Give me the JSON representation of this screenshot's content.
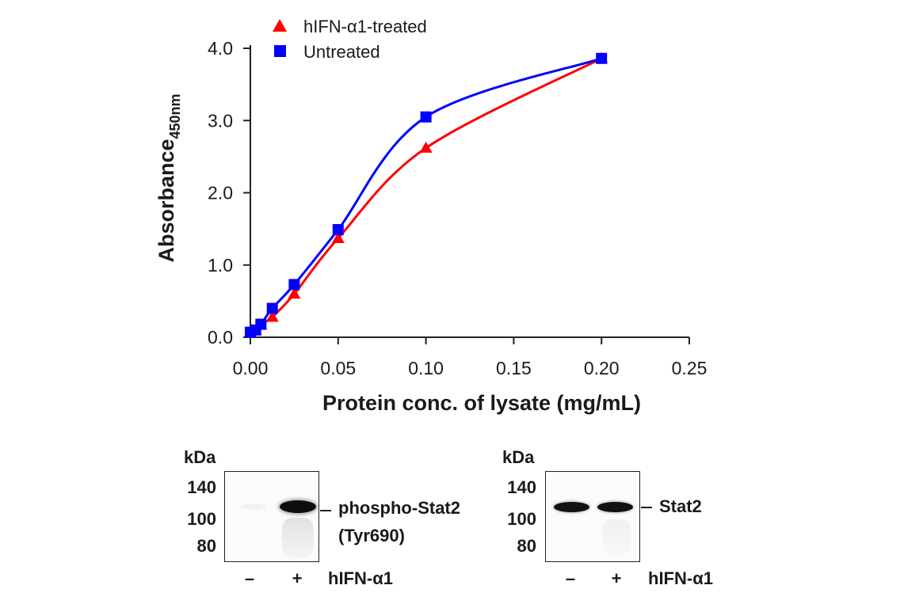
{
  "chart_data": {
    "type": "line",
    "xlabel": "Protein conc. of lysate (mg/mL)",
    "ylabel": "Absorbance",
    "ylabel_subscript": "450nm",
    "xlim": [
      0,
      0.25
    ],
    "ylim": [
      0,
      4.0
    ],
    "x_ticks": [
      "0.00",
      "0.05",
      "0.10",
      "0.15",
      "0.20",
      "0.25"
    ],
    "y_ticks": [
      "0.0",
      "1.0",
      "2.0",
      "3.0",
      "4.0"
    ],
    "legend_position": "top-left",
    "series": [
      {
        "name": "hIFN-α1-treated",
        "color": "#ff0000",
        "marker": "triangle",
        "x": [
          0.0,
          0.003,
          0.006,
          0.0125,
          0.025,
          0.05,
          0.1,
          0.2
        ],
        "y": [
          0.07,
          0.1,
          0.17,
          0.28,
          0.6,
          1.37,
          2.62,
          3.86
        ]
      },
      {
        "name": "Untreated",
        "color": "#0000ff",
        "marker": "square",
        "x": [
          0.0,
          0.003,
          0.006,
          0.0125,
          0.025,
          0.05,
          0.1,
          0.2
        ],
        "y": [
          0.07,
          0.1,
          0.18,
          0.4,
          0.73,
          1.49,
          3.05,
          3.86
        ]
      }
    ]
  },
  "blots": [
    {
      "unit_label": "kDa",
      "markers": [
        "140",
        "100",
        "80"
      ],
      "band_label_line1": "phospho-Stat2",
      "band_label_line2": "(Tyr690)",
      "lanes": [
        "–",
        "+"
      ],
      "treatment_label": "hIFN-α1"
    },
    {
      "unit_label": "kDa",
      "markers": [
        "140",
        "100",
        "80"
      ],
      "band_label_line1": "Stat2",
      "lanes": [
        "–",
        "+"
      ],
      "treatment_label": "hIFN-α1"
    }
  ]
}
